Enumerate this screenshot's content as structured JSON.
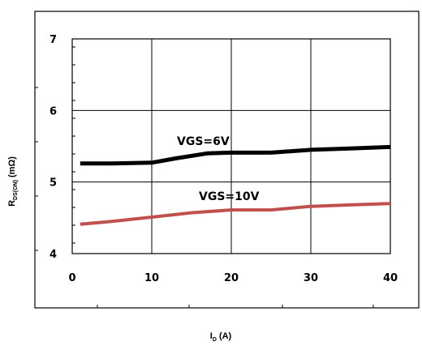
{
  "chart_data": {
    "type": "line",
    "xlabel_main": "I",
    "xlabel_sub": "D",
    "xlabel_unit": " (A)",
    "ylabel_main": "R",
    "ylabel_sub": "DS(ON)",
    "ylabel_unit": " (mΩ)",
    "xlim": [
      0,
      40
    ],
    "ylim": [
      4,
      7
    ],
    "xticks": [
      "0",
      "10",
      "20",
      "30",
      "40"
    ],
    "yticks": [
      "4",
      "5",
      "6",
      "7"
    ],
    "grid": true,
    "series": [
      {
        "name": "VGS=6V",
        "color": "#000000",
        "x": [
          1,
          5,
          10,
          13,
          17,
          20,
          25,
          30,
          35,
          40
        ],
        "y": [
          5.26,
          5.26,
          5.27,
          5.33,
          5.4,
          5.41,
          5.41,
          5.45,
          5.47,
          5.49
        ]
      },
      {
        "name": "VGS=10V",
        "color": "#c0504d",
        "x": [
          1,
          5,
          10,
          15,
          20,
          25,
          30,
          35,
          40
        ],
        "y": [
          4.41,
          4.45,
          4.51,
          4.57,
          4.61,
          4.61,
          4.66,
          4.68,
          4.7
        ]
      }
    ]
  }
}
